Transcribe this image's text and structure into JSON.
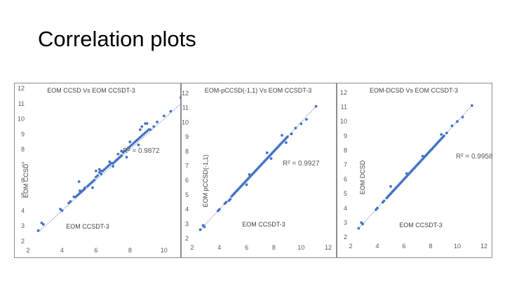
{
  "slide": {
    "title": "Correlation plots"
  },
  "chart_data": [
    {
      "type": "scatter",
      "title": "EOM CCSD Vs EOM CCSDT-3",
      "xlabel": "EOM CCSDT-3",
      "ylabel": "EOM CCSD",
      "r2": "R² = 0.9872",
      "xlim": [
        2,
        11
      ],
      "ylim": [
        2,
        12
      ],
      "xticks": [
        "2",
        "4",
        "6",
        "8",
        "10"
      ],
      "yticks": [
        "2",
        "3",
        "4",
        "5",
        "6",
        "7",
        "8",
        "9",
        "10",
        "11",
        "12"
      ],
      "trendline": true,
      "x": [
        2.6,
        2.8,
        2.9,
        3.9,
        4.0,
        4.4,
        4.5,
        4.7,
        4.8,
        4.9,
        5.0,
        5.05,
        5.1,
        5.2,
        5.3,
        5.35,
        5.5,
        5.6,
        5.7,
        5.8,
        5.9,
        6.0,
        6.1,
        6.2,
        6.3,
        6.4,
        6.5,
        6.6,
        6.7,
        6.8,
        6.9,
        7.0,
        7.1,
        7.2,
        7.3,
        7.4,
        7.5,
        7.6,
        7.7,
        7.8,
        7.9,
        8.0,
        8.1,
        8.2,
        8.3,
        8.4,
        8.5,
        8.6,
        8.7,
        8.8,
        8.9,
        9.0,
        9.2,
        9.4,
        9.6,
        10.0,
        10.4,
        11.0,
        5.0,
        5.8,
        6.0,
        6.2,
        6.8,
        7.3,
        7.5,
        8.0,
        8.4,
        8.6,
        8.7,
        8.9,
        9.0,
        9.1,
        6.3,
        7.0,
        7.8,
        8.5
      ],
      "y": [
        2.7,
        3.2,
        3.1,
        4.1,
        4.0,
        4.5,
        4.6,
        4.9,
        4.9,
        5.0,
        5.1,
        5.3,
        5.2,
        5.3,
        5.4,
        5.5,
        5.6,
        5.7,
        5.8,
        5.9,
        6.0,
        6.2,
        6.3,
        6.5,
        6.6,
        6.6,
        6.7,
        6.8,
        6.9,
        7.0,
        7.1,
        7.1,
        7.2,
        7.3,
        7.4,
        7.5,
        7.6,
        7.8,
        7.9,
        8.0,
        8.1,
        8.2,
        8.3,
        8.4,
        8.5,
        8.6,
        8.7,
        8.8,
        8.9,
        9.0,
        9.1,
        9.2,
        9.3,
        9.5,
        9.8,
        10.2,
        10.5,
        11.4,
        5.9,
        5.5,
        6.6,
        6.7,
        7.2,
        7.7,
        7.9,
        8.5,
        8.6,
        9.3,
        9.5,
        9.7,
        9.7,
        9.3,
        6.4,
        6.9,
        7.5,
        8.3
      ]
    },
    {
      "type": "scatter",
      "title": "EOM-pCCSD(-1,1) Vs EOM CCSDT-3",
      "xlabel": "EOM CCSDT-3",
      "ylabel": "EOM pCCSD(-1,1)",
      "r2": "R² = 0.9927",
      "xlim": [
        2,
        12
      ],
      "ylim": [
        2,
        12
      ],
      "xticks": [
        "2",
        "4",
        "6",
        "8",
        "10",
        "12"
      ],
      "yticks": [
        "2",
        "3",
        "4",
        "5",
        "6",
        "7",
        "8",
        "9",
        "10",
        "11",
        "12"
      ],
      "trendline": true,
      "x": [
        2.6,
        2.8,
        2.9,
        3.9,
        4.0,
        4.4,
        4.5,
        4.7,
        4.8,
        4.9,
        5.0,
        5.1,
        5.2,
        5.3,
        5.4,
        5.5,
        5.6,
        5.7,
        5.8,
        5.9,
        6.0,
        6.1,
        6.2,
        6.3,
        6.4,
        6.5,
        6.6,
        6.7,
        6.8,
        6.9,
        7.0,
        7.1,
        7.2,
        7.3,
        7.4,
        7.5,
        7.6,
        7.7,
        7.8,
        7.9,
        8.0,
        8.1,
        8.2,
        8.3,
        8.4,
        8.5,
        8.6,
        8.7,
        8.8,
        8.9,
        9.0,
        9.3,
        9.6,
        10.0,
        10.4,
        11.1,
        6.0,
        6.2,
        7.5,
        7.8,
        8.6,
        8.9
      ],
      "y": [
        2.6,
        2.9,
        2.8,
        3.9,
        4.0,
        4.4,
        4.5,
        4.6,
        4.7,
        4.9,
        5.0,
        5.1,
        5.2,
        5.3,
        5.4,
        5.5,
        5.6,
        5.7,
        5.8,
        5.9,
        6.0,
        6.1,
        6.2,
        6.3,
        6.4,
        6.5,
        6.6,
        6.7,
        6.8,
        6.9,
        7.0,
        7.1,
        7.2,
        7.3,
        7.4,
        7.5,
        7.6,
        7.7,
        7.8,
        7.9,
        8.0,
        8.1,
        8.2,
        8.3,
        8.4,
        8.5,
        8.6,
        8.7,
        8.8,
        8.9,
        9.0,
        9.2,
        9.6,
        9.9,
        10.2,
        11.1,
        5.7,
        6.4,
        7.9,
        7.5,
        9.1,
        8.6
      ]
    },
    {
      "type": "scatter",
      "title": "EOM-DCSD Vs EOM CCSDT-3",
      "xlabel": "EOM CCSDT-3",
      "ylabel": "EOM DCSD",
      "r2": "R² = 0.9958",
      "xlim": [
        2,
        12
      ],
      "ylim": [
        2,
        12
      ],
      "xticks": [
        "2",
        "4",
        "6",
        "8",
        "10",
        "12"
      ],
      "yticks": [
        "2",
        "3",
        "4",
        "5",
        "6",
        "7",
        "8",
        "9",
        "10",
        "11",
        "12"
      ],
      "trendline": true,
      "x": [
        2.6,
        2.8,
        2.9,
        3.9,
        4.0,
        4.4,
        4.5,
        4.7,
        4.8,
        4.9,
        5.0,
        5.1,
        5.2,
        5.3,
        5.4,
        5.5,
        5.6,
        5.7,
        5.8,
        5.9,
        6.0,
        6.1,
        6.2,
        6.3,
        6.4,
        6.5,
        6.6,
        6.7,
        6.8,
        6.9,
        7.0,
        7.1,
        7.2,
        7.3,
        7.4,
        7.5,
        7.6,
        7.7,
        7.8,
        7.9,
        8.0,
        8.1,
        8.2,
        8.3,
        8.4,
        8.5,
        8.6,
        8.7,
        8.8,
        8.9,
        9.0,
        9.2,
        9.6,
        10.0,
        10.4,
        11.1,
        5.0,
        6.2,
        7.4,
        8.8
      ],
      "y": [
        2.6,
        3.0,
        2.9,
        3.9,
        4.0,
        4.4,
        4.5,
        4.7,
        4.8,
        4.9,
        5.0,
        5.1,
        5.2,
        5.3,
        5.4,
        5.5,
        5.6,
        5.7,
        5.8,
        5.9,
        6.0,
        6.1,
        6.2,
        6.3,
        6.4,
        6.5,
        6.6,
        6.7,
        6.8,
        6.9,
        7.0,
        7.1,
        7.2,
        7.3,
        7.4,
        7.5,
        7.6,
        7.7,
        7.8,
        7.9,
        8.0,
        8.1,
        8.2,
        8.3,
        8.4,
        8.5,
        8.6,
        8.7,
        8.8,
        8.9,
        9.0,
        9.2,
        9.7,
        10.0,
        10.3,
        11.1,
        5.5,
        6.4,
        7.6,
        9.1
      ]
    }
  ]
}
